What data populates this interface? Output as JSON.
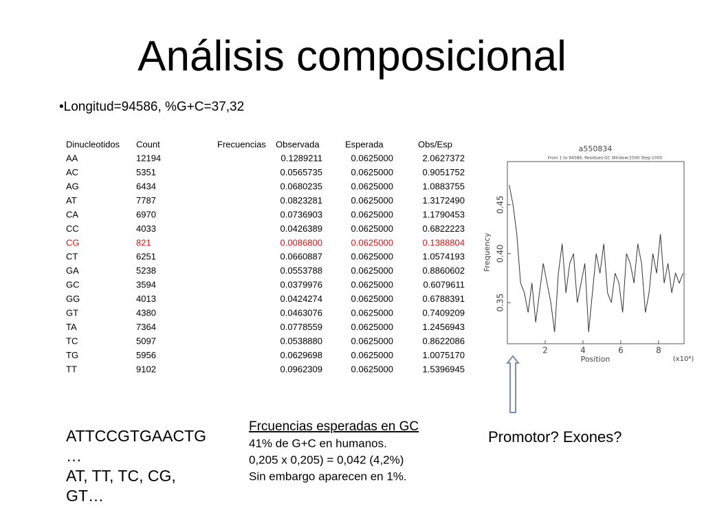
{
  "header": {
    "title": "Análisis composicional",
    "bullet": "•Longitud=94586, %G+C=37,32"
  },
  "table": {
    "headers": [
      "Dinucleotidos",
      "Count",
      "Frecuencias",
      "Observada",
      "Esperada",
      "Obs/Esp"
    ],
    "rows": [
      {
        "cells": [
          "AA",
          "12194",
          "0.1289211",
          "0.0625000",
          "2.0627372"
        ],
        "color": "#000000"
      },
      {
        "cells": [
          "AC",
          "5351",
          "0.0565735",
          "0.0625000",
          "0.9051752"
        ],
        "color": "#000000"
      },
      {
        "cells": [
          "AG",
          "6434",
          "0.0680235",
          "0.0625000",
          "1.0883755"
        ],
        "color": "#000000"
      },
      {
        "cells": [
          "AT",
          "7787",
          "0.0823281",
          "0.0625000",
          "1.3172490"
        ],
        "color": "#000000"
      },
      {
        "cells": [
          "CA",
          "6970",
          "0.0736903",
          "0.0625000",
          "1.1790453"
        ],
        "color": "#000000"
      },
      {
        "cells": [
          "CC",
          "4033",
          "0.0426389",
          "0.0625000",
          "0.6822223"
        ],
        "color": "#000000"
      },
      {
        "cells": [
          "CG",
          "821",
          "0.0086800",
          "0.0625000",
          "0.1388804"
        ],
        "color": "#dd1111"
      },
      {
        "cells": [
          "CT",
          "6251",
          "0.0660887",
          "0.0625000",
          "1.0574193"
        ],
        "color": "#000000"
      },
      {
        "cells": [
          "GA",
          "5238",
          "0.0553788",
          "0.0625000",
          "0.8860602"
        ],
        "color": "#000000"
      },
      {
        "cells": [
          "GC",
          "3594",
          "0.0379976",
          "0.0625000",
          "0.6079611"
        ],
        "color": "#000000"
      },
      {
        "cells": [
          "GG",
          "4013",
          "0.0424274",
          "0.0625000",
          "0.6788391"
        ],
        "color": "#000000"
      },
      {
        "cells": [
          "GT",
          "4380",
          "0.0463076",
          "0.0625000",
          "0.7409209"
        ],
        "color": "#000000"
      },
      {
        "cells": [
          "TA",
          "7364",
          "0.0778559",
          "0.0625000",
          "1.2456943"
        ],
        "color": "#000000"
      },
      {
        "cells": [
          "TC",
          "5097",
          "0.0538880",
          "0.0625000",
          "0.8622086"
        ],
        "color": "#000000"
      },
      {
        "cells": [
          "TG",
          "5956",
          "0.0629698",
          "0.0625000",
          "1.0075170"
        ],
        "color": "#000000"
      },
      {
        "cells": [
          "TT",
          "9102",
          "0.0962309",
          "0.0625000",
          "1.5396945"
        ],
        "color": "#000000"
      }
    ]
  },
  "sequence": {
    "lines": [
      "ATTCCGTGAACTG",
      "…",
      "AT, TT, TC, CG,",
      "GT…"
    ]
  },
  "note": {
    "heading": "Frcuencias esperadas en GC",
    "lines": [
      "41% de G+C en humanos.",
      "0,205 x 0,205) = 0,042 (4,2%)",
      "Sin embargo aparecen en 1%."
    ]
  },
  "question": "Promotor? Exones?",
  "chart_data": {
    "type": "line",
    "title": "a550834",
    "subtitle": "From 1 to 94586, Residues:GC Window:2500 Step:1000",
    "x_label": "Position",
    "y_label": "Frequency",
    "x_unit": "(x10⁴)",
    "xlim": [
      0,
      9.35
    ],
    "ylim": [
      0.308,
      0.494
    ],
    "xticks": [
      2,
      4,
      6,
      8
    ],
    "yticks": [
      0.35,
      {
        "value": 0.4,
        "label": "0.40"
      },
      0.45
    ],
    "x": [
      0.1,
      0.3,
      0.5,
      0.7,
      0.9,
      1.1,
      1.3,
      1.5,
      1.7,
      1.9,
      2.1,
      2.3,
      2.5,
      2.7,
      2.9,
      3.1,
      3.3,
      3.5,
      3.7,
      3.9,
      4.1,
      4.3,
      4.5,
      4.7,
      4.9,
      5.1,
      5.3,
      5.5,
      5.7,
      5.9,
      6.1,
      6.3,
      6.5,
      6.7,
      6.9,
      7.1,
      7.3,
      7.5,
      7.7,
      7.9,
      8.1,
      8.3,
      8.5,
      8.7,
      8.9,
      9.1,
      9.3
    ],
    "series": [
      {
        "name": "GC",
        "color": "#333333",
        "values": [
          0.47,
          0.45,
          0.42,
          0.37,
          0.36,
          0.34,
          0.37,
          0.33,
          0.36,
          0.39,
          0.37,
          0.35,
          0.32,
          0.38,
          0.41,
          0.36,
          0.39,
          0.4,
          0.35,
          0.37,
          0.39,
          0.32,
          0.36,
          0.4,
          0.38,
          0.41,
          0.36,
          0.35,
          0.38,
          0.37,
          0.34,
          0.4,
          0.39,
          0.37,
          0.41,
          0.39,
          0.34,
          0.36,
          0.4,
          0.38,
          0.42,
          0.37,
          0.39,
          0.36,
          0.38,
          0.37,
          0.38
        ]
      }
    ]
  }
}
